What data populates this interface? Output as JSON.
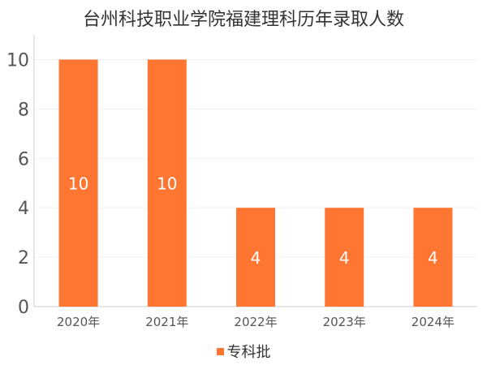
{
  "chart_data": {
    "type": "bar",
    "title": "台州科技职业学院福建理科历年录取人数",
    "categories": [
      "2020年",
      "2021年",
      "2022年",
      "2023年",
      "2024年"
    ],
    "series": [
      {
        "name": "专科批",
        "values": [
          10,
          10,
          4,
          4,
          4
        ],
        "color": "#ff7632"
      }
    ],
    "xlabel": "",
    "ylabel": "",
    "ylim": [
      0,
      11
    ],
    "yticks": [
      0,
      2,
      4,
      6,
      8,
      10
    ],
    "grid": true,
    "data_labels": true,
    "legend_position": "bottom"
  }
}
